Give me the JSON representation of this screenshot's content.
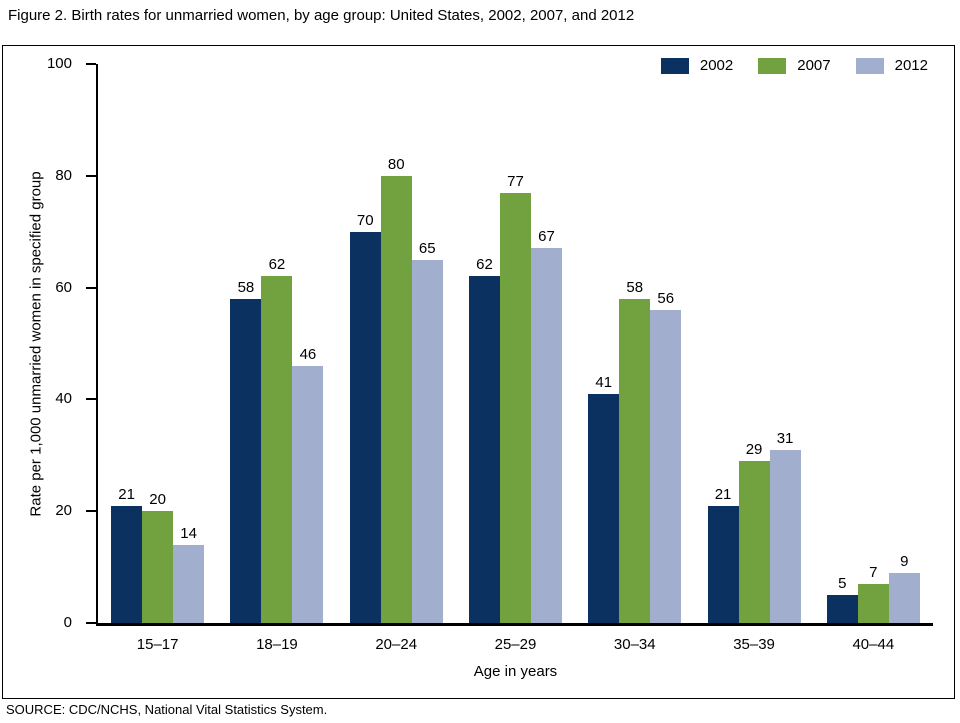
{
  "figure": {
    "title": "Figure 2. Birth rates for unmarried women, by age group: United States, 2002, 2007, and 2012",
    "source": "SOURCE: CDC/NCHS, National Vital Statistics System."
  },
  "chart_data": {
    "type": "bar",
    "title": "Birth rates for unmarried women, by age group: United States, 2002, 2007, and 2012",
    "categories": [
      "15–17",
      "18–19",
      "20–24",
      "25–29",
      "30–34",
      "35–39",
      "40–44"
    ],
    "series": [
      {
        "name": "2002",
        "color": "#0b3161",
        "values": [
          21,
          58,
          70,
          62,
          41,
          21,
          5
        ]
      },
      {
        "name": "2007",
        "color": "#72a23f",
        "values": [
          20,
          62,
          80,
          77,
          58,
          29,
          7
        ]
      },
      {
        "name": "2012",
        "color": "#a2aecd",
        "values": [
          14,
          46,
          65,
          67,
          56,
          31,
          9
        ]
      }
    ],
    "xlabel": "Age in years",
    "ylabel": "Rate per 1,000 unmarried women in specified group",
    "ylim": [
      0,
      100
    ],
    "yticks": [
      0,
      20,
      40,
      60,
      80,
      100
    ],
    "grid": false,
    "legend_position": "top-right",
    "data_labels": true,
    "axis_color": "#000000",
    "frame_border_color": "#000000"
  }
}
